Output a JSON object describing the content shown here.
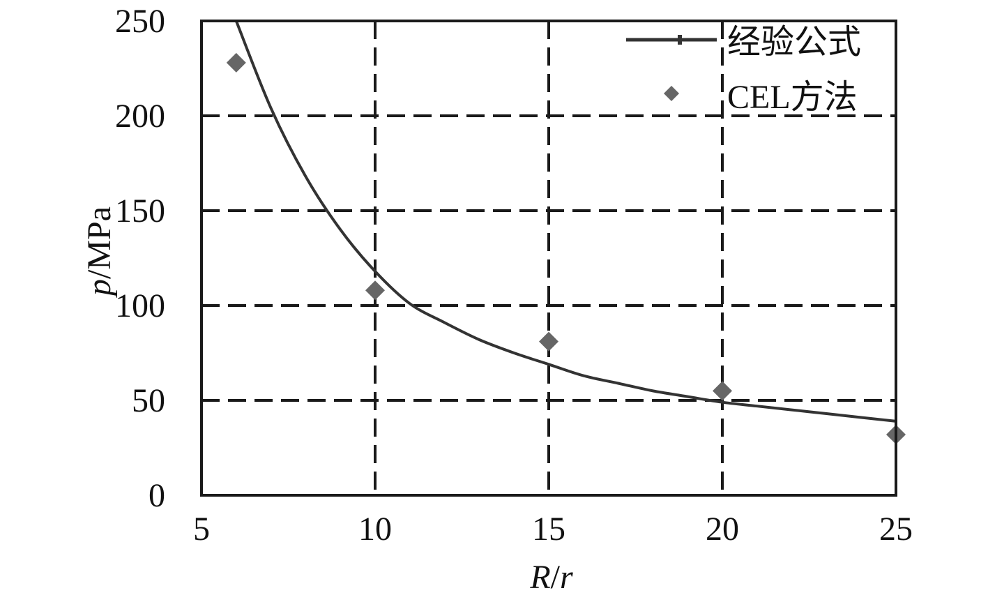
{
  "chart_data": {
    "type": "line",
    "xlabel": {
      "italic": "R",
      "rest": "/",
      "italic2": "r"
    },
    "ylabel": {
      "italic": "p",
      "rest": "/MPa"
    },
    "xlim": [
      5,
      25
    ],
    "ylim": [
      0,
      250
    ],
    "xticks": [
      5,
      10,
      15,
      20,
      25
    ],
    "yticks": [
      0,
      50,
      100,
      150,
      200,
      250
    ],
    "grid": true,
    "legend_position": "top-right",
    "series": [
      {
        "name": "经验公式",
        "kind": "line",
        "x": [
          6,
          7,
          8,
          9,
          10,
          11,
          12,
          13,
          14,
          15,
          16,
          17,
          18,
          19,
          20,
          21,
          22,
          23,
          24,
          25
        ],
        "y": [
          250,
          204,
          168,
          140,
          118,
          101,
          91,
          82,
          75,
          69,
          63,
          59,
          55,
          52,
          49,
          47,
          45,
          43,
          41,
          39
        ]
      },
      {
        "name": "CEL方法",
        "kind": "scatter",
        "x": [
          6,
          10,
          15,
          20,
          25
        ],
        "y": [
          228,
          108,
          81,
          55,
          32
        ]
      }
    ],
    "colors": {
      "line": "#333333",
      "markers": "#666666",
      "grid": "#1a1a1a"
    }
  }
}
